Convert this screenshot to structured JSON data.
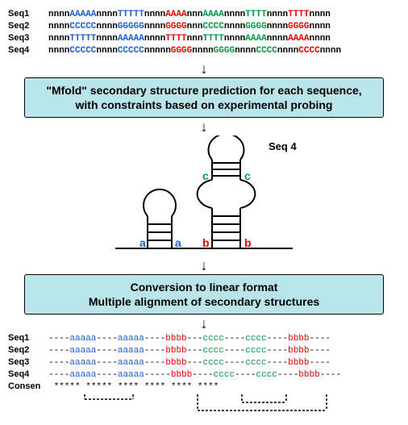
{
  "colors": {
    "black": "#000000",
    "blue": "#1a5fd6",
    "red": "#e60000",
    "green": "#009944",
    "box_bg": "#b8e4ea"
  },
  "sequences": [
    {
      "label": "Seq1",
      "segments": [
        {
          "text": "nnnn",
          "cls": "n"
        },
        {
          "text": "AAAAA",
          "cls": "bl"
        },
        {
          "text": "nnnn",
          "cls": "n"
        },
        {
          "text": "TTTTT",
          "cls": "bl"
        },
        {
          "text": "nnnn",
          "cls": "n"
        },
        {
          "text": "AAAA",
          "cls": "rd"
        },
        {
          "text": "nnn",
          "cls": "n"
        },
        {
          "text": "AAAA",
          "cls": "gr"
        },
        {
          "text": "nnnn",
          "cls": "n"
        },
        {
          "text": "TTTT",
          "cls": "gr"
        },
        {
          "text": "nnnn",
          "cls": "n"
        },
        {
          "text": "TTTT",
          "cls": "rd"
        },
        {
          "text": "nnnn",
          "cls": "n"
        }
      ]
    },
    {
      "label": "Seq2",
      "segments": [
        {
          "text": "nnnn",
          "cls": "n"
        },
        {
          "text": "CCCCC",
          "cls": "bl"
        },
        {
          "text": "nnnn",
          "cls": "n"
        },
        {
          "text": "GGGGG",
          "cls": "bl"
        },
        {
          "text": "nnnn",
          "cls": "n"
        },
        {
          "text": "GGGG",
          "cls": "rd"
        },
        {
          "text": "nnn",
          "cls": "n"
        },
        {
          "text": "CCCC",
          "cls": "gr"
        },
        {
          "text": "nnnn",
          "cls": "n"
        },
        {
          "text": "GGGG",
          "cls": "gr"
        },
        {
          "text": "nnnn",
          "cls": "n"
        },
        {
          "text": "GGGG",
          "cls": "rd"
        },
        {
          "text": "nnnn",
          "cls": "n"
        }
      ]
    },
    {
      "label": "Seq3",
      "segments": [
        {
          "text": "nnnn",
          "cls": "n"
        },
        {
          "text": "TTTTT",
          "cls": "bl"
        },
        {
          "text": "nnnn",
          "cls": "n"
        },
        {
          "text": "AAAAA",
          "cls": "bl"
        },
        {
          "text": "nnnn",
          "cls": "n"
        },
        {
          "text": "TTTT",
          "cls": "rd"
        },
        {
          "text": "nnn",
          "cls": "n"
        },
        {
          "text": "TTTT",
          "cls": "gr"
        },
        {
          "text": "nnnn",
          "cls": "n"
        },
        {
          "text": "AAAA",
          "cls": "gr"
        },
        {
          "text": "nnnn",
          "cls": "n"
        },
        {
          "text": "AAAA",
          "cls": "rd"
        },
        {
          "text": "nnnn",
          "cls": "n"
        }
      ]
    },
    {
      "label": "Seq4",
      "segments": [
        {
          "text": "nnnn",
          "cls": "n"
        },
        {
          "text": "CCCCC",
          "cls": "bl"
        },
        {
          "text": "nnnn",
          "cls": "n"
        },
        {
          "text": "CCCCC",
          "cls": "bl"
        },
        {
          "text": "nnnnn",
          "cls": "n"
        },
        {
          "text": "GGGG",
          "cls": "rd"
        },
        {
          "text": "nnnn",
          "cls": "n"
        },
        {
          "text": "GGGG",
          "cls": "gr"
        },
        {
          "text": "nnnn",
          "cls": "n"
        },
        {
          "text": "CCCC",
          "cls": "gr"
        },
        {
          "text": "nnnn",
          "cls": "n"
        },
        {
          "text": "CCCC",
          "cls": "rd"
        },
        {
          "text": "nnnn",
          "cls": "n"
        }
      ]
    }
  ],
  "box1": {
    "line1": "\"Mfold\" secondary structure prediction for each sequence,",
    "line2": "with constraints based on experimental probing"
  },
  "box2": {
    "line1": "Conversion to linear format",
    "line2": "Multiple alignment of secondary structures"
  },
  "structure": {
    "labels": {
      "seq4_top": "Seq 4",
      "a_left": "a",
      "a_right": "a",
      "b_left": "b",
      "b_right": "b",
      "c_left": "c",
      "c_right": "c"
    },
    "label_colors": {
      "a": "#1a5fd6",
      "b": "#e60000",
      "c": "#009944"
    },
    "line_color": "#000000",
    "line_width": 2
  },
  "alignment": [
    {
      "label": "Seq1",
      "segments": [
        {
          "text": "----",
          "cls": "n"
        },
        {
          "text": "aaaaa",
          "cls": "bl"
        },
        {
          "text": "----",
          "cls": "n"
        },
        {
          "text": "aaaaa",
          "cls": "bl"
        },
        {
          "text": "----",
          "cls": "n"
        },
        {
          "text": "bbbb",
          "cls": "rd"
        },
        {
          "text": "---",
          "cls": "n"
        },
        {
          "text": "cccc",
          "cls": "gr"
        },
        {
          "text": "----",
          "cls": "n"
        },
        {
          "text": "cccc",
          "cls": "gr"
        },
        {
          "text": "----",
          "cls": "n"
        },
        {
          "text": "bbbb",
          "cls": "rd"
        },
        {
          "text": "----",
          "cls": "n"
        }
      ]
    },
    {
      "label": "Seq2",
      "segments": [
        {
          "text": "----",
          "cls": "n"
        },
        {
          "text": "aaaaa",
          "cls": "bl"
        },
        {
          "text": "----",
          "cls": "n"
        },
        {
          "text": "aaaaa",
          "cls": "bl"
        },
        {
          "text": "----",
          "cls": "n"
        },
        {
          "text": "bbbb",
          "cls": "rd"
        },
        {
          "text": "---",
          "cls": "n"
        },
        {
          "text": "cccc",
          "cls": "gr"
        },
        {
          "text": "----",
          "cls": "n"
        },
        {
          "text": "cccc",
          "cls": "gr"
        },
        {
          "text": "----",
          "cls": "n"
        },
        {
          "text": "bbbb",
          "cls": "rd"
        },
        {
          "text": "----",
          "cls": "n"
        }
      ]
    },
    {
      "label": "Seq3",
      "segments": [
        {
          "text": "----",
          "cls": "n"
        },
        {
          "text": "aaaaa",
          "cls": "bl"
        },
        {
          "text": "----",
          "cls": "n"
        },
        {
          "text": "aaaaa",
          "cls": "bl"
        },
        {
          "text": "----",
          "cls": "n"
        },
        {
          "text": "bbbb",
          "cls": "rd"
        },
        {
          "text": "---",
          "cls": "n"
        },
        {
          "text": "cccc",
          "cls": "gr"
        },
        {
          "text": "----",
          "cls": "n"
        },
        {
          "text": "cccc",
          "cls": "gr"
        },
        {
          "text": "----",
          "cls": "n"
        },
        {
          "text": "bbbb",
          "cls": "rd"
        },
        {
          "text": "----",
          "cls": "n"
        }
      ]
    },
    {
      "label": "Seq4",
      "segments": [
        {
          "text": "----",
          "cls": "n"
        },
        {
          "text": "aaaaa",
          "cls": "bl"
        },
        {
          "text": "----",
          "cls": "n"
        },
        {
          "text": "aaaaa",
          "cls": "bl"
        },
        {
          "text": "-----",
          "cls": "n"
        },
        {
          "text": "bbbb",
          "cls": "rd"
        },
        {
          "text": "----",
          "cls": "n"
        },
        {
          "text": "cccc",
          "cls": "gr"
        },
        {
          "text": "----",
          "cls": "n"
        },
        {
          "text": "cccc",
          "cls": "gr"
        },
        {
          "text": "----",
          "cls": "n"
        },
        {
          "text": "bbbb",
          "cls": "rd"
        },
        {
          "text": "----",
          "cls": "n"
        }
      ]
    },
    {
      "label": "Consen",
      "segments": [
        {
          "text": "    ",
          "cls": "n"
        },
        {
          "text": "*****",
          "cls": "blk"
        },
        {
          "text": "    ",
          "cls": "n"
        },
        {
          "text": "*****",
          "cls": "blk"
        },
        {
          "text": "    ",
          "cls": "n"
        },
        {
          "text": "****",
          "cls": "blk"
        },
        {
          "text": "   ",
          "cls": "n"
        },
        {
          "text": "****",
          "cls": "blk"
        },
        {
          "text": "    ",
          "cls": "n"
        },
        {
          "text": "****",
          "cls": "blk"
        },
        {
          "text": "    ",
          "cls": "n"
        },
        {
          "text": "****",
          "cls": "blk"
        },
        {
          "text": "    ",
          "cls": "n"
        }
      ]
    }
  ],
  "bracket_style": {
    "color": "#000000",
    "dash": "3,2",
    "width": 1.5
  }
}
